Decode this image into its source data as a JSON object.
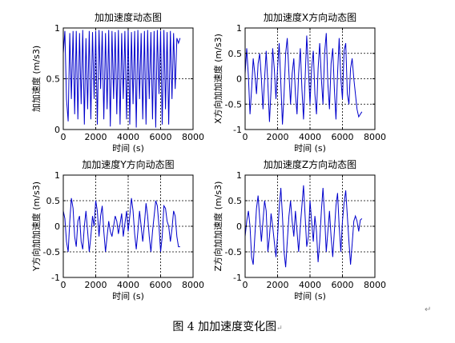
{
  "figure": {
    "caption": "图 4  加加速度变化图",
    "caption_mark": "↵",
    "para_mark": "↵"
  },
  "chart_data": [
    {
      "type": "line",
      "title": "加加速度动态图",
      "xlabel": "时间 (s)",
      "ylabel": "加加速度 (m/s3)",
      "xlim": [
        0,
        8000
      ],
      "ylim": [
        0,
        1
      ],
      "xticks": [
        0,
        2000,
        4000,
        6000,
        8000
      ],
      "yticks": [
        0,
        0.5,
        1
      ],
      "ytick_labels": [
        "0",
        "0.5",
        "1"
      ],
      "grid": true,
      "color": "#0000cc",
      "series": [
        {
          "x": [
            0,
            100,
            200,
            300,
            400,
            500,
            600,
            700,
            800,
            900,
            1000,
            1100,
            1200,
            1300,
            1400,
            1500,
            1600,
            1700,
            1800,
            1900,
            2000,
            2100,
            2200,
            2300,
            2400,
            2500,
            2600,
            2700,
            2800,
            2900,
            3000,
            3100,
            3200,
            3300,
            3400,
            3500,
            3600,
            3700,
            3800,
            3900,
            4000,
            4100,
            4200,
            4300,
            4400,
            4500,
            4600,
            4700,
            4800,
            4900,
            5000,
            5100,
            5200,
            5300,
            5400,
            5500,
            5600,
            5700,
            5800,
            5900,
            6000,
            6100,
            6200,
            6300,
            6400,
            6500,
            6600,
            6700,
            6800,
            6900,
            7000,
            7100,
            7200
          ],
          "values": [
            0.75,
            0.97,
            0.3,
            0.08,
            0.95,
            0.3,
            0.97,
            0.15,
            0.97,
            0.1,
            0.95,
            0.25,
            0.98,
            0.05,
            0.9,
            0.2,
            0.97,
            0.1,
            0.96,
            0.3,
            0.97,
            0.05,
            0.98,
            0.4,
            0.97,
            0.1,
            0.95,
            0.2,
            0.98,
            0.03,
            0.97,
            0.3,
            0.96,
            0.15,
            0.98,
            0.05,
            0.95,
            0.3,
            0.97,
            0.1,
            0.99,
            0.05,
            0.96,
            0.25,
            0.97,
            0.02,
            0.98,
            0.3,
            0.95,
            0.1,
            0.97,
            0.05,
            0.98,
            0.3,
            0.96,
            0.1,
            0.97,
            0.02,
            0.98,
            0.35,
            0.97,
            0.05,
            0.98,
            0.2,
            0.96,
            0.05,
            0.97,
            0.3,
            0.95,
            0.4,
            0.9,
            0.85,
            0.9
          ]
        }
      ]
    },
    {
      "type": "line",
      "title": "加加速度X方向动态图",
      "xlabel": "时间 (s)",
      "ylabel": "X方向加加速度 (m/s3)",
      "xlim": [
        0,
        8000
      ],
      "ylim": [
        -1,
        1
      ],
      "xticks": [
        0,
        2000,
        4000,
        6000,
        8000
      ],
      "yticks": [
        -1,
        -0.5,
        0,
        0.5,
        1
      ],
      "ytick_labels": [
        "-1",
        "-0.5",
        "0",
        "0.5",
        "1"
      ],
      "grid": true,
      "color": "#0000cc",
      "series": [
        {
          "x": [
            0,
            100,
            200,
            300,
            400,
            500,
            600,
            700,
            800,
            900,
            1000,
            1100,
            1200,
            1300,
            1400,
            1500,
            1600,
            1700,
            1800,
            1900,
            2000,
            2100,
            2200,
            2300,
            2400,
            2500,
            2600,
            2700,
            2800,
            2900,
            3000,
            3100,
            3200,
            3300,
            3400,
            3500,
            3600,
            3700,
            3800,
            3900,
            4000,
            4100,
            4200,
            4300,
            4400,
            4500,
            4600,
            4700,
            4800,
            4900,
            5000,
            5100,
            5200,
            5300,
            5400,
            5500,
            5600,
            5700,
            5800,
            5900,
            6000,
            6100,
            6200,
            6300,
            6400,
            6500,
            6600,
            6700,
            6800,
            6900,
            7000,
            7100,
            7200
          ],
          "values": [
            0.1,
            0.6,
            0.05,
            -0.7,
            -0.2,
            0.4,
            0.1,
            -0.3,
            0.3,
            0.5,
            0.0,
            -0.6,
            0.0,
            0.55,
            -0.1,
            -0.85,
            -0.2,
            0.6,
            0.2,
            -0.4,
            0.2,
            0.7,
            -0.1,
            -0.9,
            -0.3,
            0.5,
            0.8,
            0.1,
            -0.5,
            0.1,
            0.4,
            -0.3,
            -0.7,
            0.1,
            0.6,
            -0.2,
            -0.8,
            0.0,
            0.85,
            0.2,
            -0.5,
            0.2,
            0.55,
            -0.3,
            -0.7,
            0.2,
            0.7,
            0.0,
            -0.5,
            0.5,
            0.9,
            -0.1,
            -0.6,
            0.3,
            0.6,
            -0.2,
            -0.8,
            0.1,
            0.8,
            0.0,
            -0.4,
            0.55,
            0.7,
            -0.3,
            -0.5,
            0.2,
            0.4,
            0.0,
            -0.3,
            -0.6,
            -0.75,
            -0.7,
            -0.65
          ]
        }
      ]
    },
    {
      "type": "line",
      "title": "加加速度Y方向动态图",
      "xlabel": "时间 (s)",
      "ylabel": "Y方向加加速度 (m/s3)",
      "xlim": [
        0,
        8000
      ],
      "ylim": [
        -1,
        1
      ],
      "xticks": [
        0,
        2000,
        4000,
        6000,
        8000
      ],
      "yticks": [
        -1,
        -0.5,
        0,
        0.5,
        1
      ],
      "ytick_labels": [
        "-1",
        "-0.5",
        "0",
        "0.5",
        "1"
      ],
      "grid": true,
      "color": "#0000cc",
      "series": [
        {
          "x": [
            0,
            100,
            200,
            300,
            400,
            500,
            600,
            700,
            800,
            900,
            1000,
            1100,
            1200,
            1300,
            1400,
            1500,
            1600,
            1700,
            1800,
            1900,
            2000,
            2100,
            2200,
            2300,
            2400,
            2500,
            2600,
            2700,
            2800,
            2900,
            3000,
            3100,
            3200,
            3300,
            3400,
            3500,
            3600,
            3700,
            3800,
            3900,
            4000,
            4100,
            4200,
            4300,
            4400,
            4500,
            4600,
            4700,
            4800,
            4900,
            5000,
            5100,
            5200,
            5300,
            5400,
            5500,
            5600,
            5700,
            5800,
            5900,
            6000,
            6100,
            6200,
            6300,
            6400,
            6500,
            6600,
            6700,
            6800,
            6900,
            7000,
            7100,
            7200
          ],
          "values": [
            0.3,
            0.15,
            -0.3,
            -0.5,
            0.1,
            0.55,
            0.35,
            -0.2,
            -0.4,
            0.1,
            0.2,
            -0.3,
            -0.45,
            0.0,
            0.3,
            -0.1,
            -0.5,
            -0.2,
            0.2,
            0.0,
            0.5,
            0.3,
            -0.2,
            0.2,
            0.4,
            -0.1,
            -0.5,
            -0.2,
            0.1,
            -0.1,
            -0.2,
            0.0,
            0.2,
            0.1,
            -0.15,
            0.05,
            0.25,
            -0.2,
            0.05,
            0.3,
            -0.1,
            0.2,
            0.55,
            0.3,
            -0.15,
            -0.45,
            -0.1,
            0.3,
            0.0,
            -0.3,
            0.05,
            0.45,
            0.2,
            -0.2,
            -0.5,
            -0.1,
            0.2,
            0.5,
            0.4,
            0.0,
            -0.5,
            -0.2,
            0.4,
            0.35,
            0.1,
            0.0,
            -0.3,
            -0.05,
            0.3,
            0.2,
            -0.2,
            -0.4,
            -0.4
          ]
        }
      ]
    },
    {
      "type": "line",
      "title": "加加速度Z方向动态图",
      "xlabel": "时间 (s)",
      "ylabel": "Z方向加加速度 (m/s3)",
      "xlim": [
        0,
        8000
      ],
      "ylim": [
        -1,
        1
      ],
      "xticks": [
        0,
        2000,
        4000,
        6000,
        8000
      ],
      "yticks": [
        -1,
        -0.5,
        0,
        0.5,
        1
      ],
      "ytick_labels": [
        "-1",
        "-0.5",
        "0",
        "0.5",
        "1"
      ],
      "grid": true,
      "color": "#0000cc",
      "series": [
        {
          "x": [
            0,
            100,
            200,
            300,
            400,
            500,
            600,
            700,
            800,
            900,
            1000,
            1100,
            1200,
            1300,
            1400,
            1500,
            1600,
            1700,
            1800,
            1900,
            2000,
            2100,
            2200,
            2300,
            2400,
            2500,
            2600,
            2700,
            2800,
            2900,
            3000,
            3100,
            3200,
            3300,
            3400,
            3500,
            3600,
            3700,
            3800,
            3900,
            4000,
            4100,
            4200,
            4300,
            4400,
            4500,
            4600,
            4700,
            4800,
            4900,
            5000,
            5100,
            5200,
            5300,
            5400,
            5500,
            5600,
            5700,
            5800,
            5900,
            6000,
            6100,
            6200,
            6300,
            6400,
            6500,
            6600,
            6700,
            6800,
            6900,
            7000,
            7100,
            7200
          ],
          "values": [
            -0.2,
            0.1,
            0.3,
            0.0,
            -0.6,
            -0.75,
            -0.2,
            0.35,
            0.6,
            0.15,
            -0.3,
            0.1,
            0.5,
            0.3,
            -0.5,
            -0.2,
            0.25,
            0.0,
            -0.3,
            -0.6,
            -0.2,
            0.35,
            0.75,
            0.2,
            -0.5,
            -0.8,
            -0.3,
            0.2,
            0.5,
            0.1,
            -0.2,
            0.3,
            -0.1,
            -0.5,
            0.0,
            0.4,
            0.8,
            0.2,
            -0.4,
            -0.2,
            0.5,
            0.1,
            -0.3,
            0.2,
            -0.1,
            -0.7,
            -0.3,
            0.3,
            0.75,
            0.2,
            -0.5,
            -0.1,
            0.3,
            -0.2,
            -0.6,
            -0.1,
            0.4,
            0.65,
            0.0,
            -0.5,
            0.1,
            0.45,
            0.7,
            0.2,
            -0.3,
            -0.75,
            -0.35,
            0.1,
            0.2,
            0.1,
            -0.1,
            0.12,
            0.15
          ]
        }
      ]
    }
  ]
}
